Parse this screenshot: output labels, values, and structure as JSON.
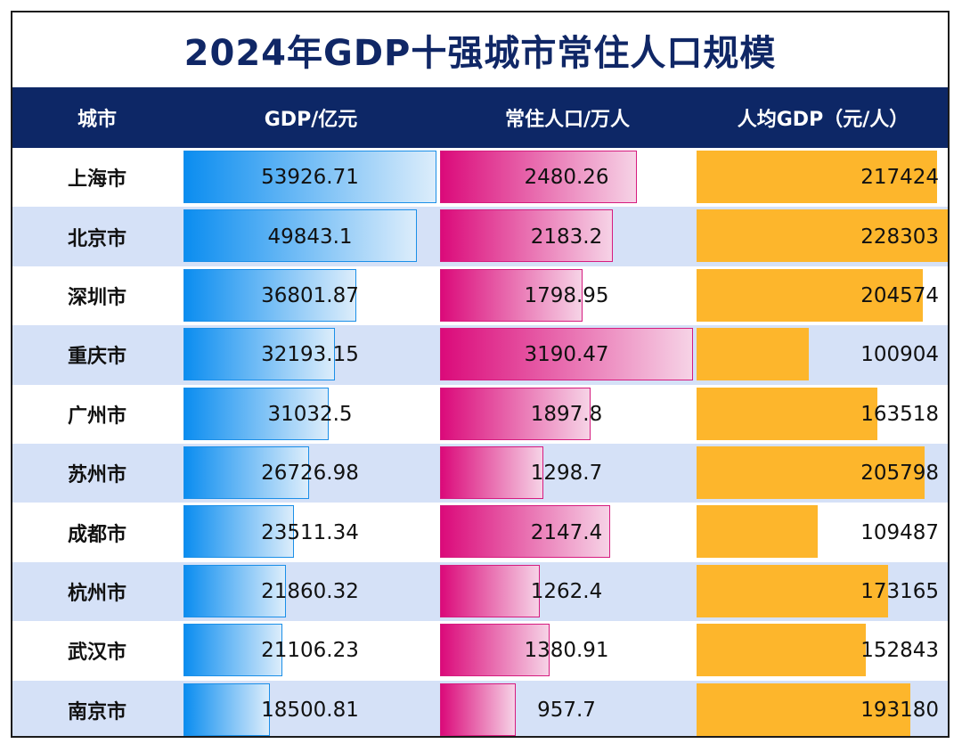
{
  "title": "2024年GDP十强城市常住人口规模",
  "headers": {
    "city": "城市",
    "gdp": "GDP/亿元",
    "population": "常住人口/万人",
    "per_capita": "人均GDP（元/人）"
  },
  "colors": {
    "header_bg": "#0d2766",
    "title_text": "#102766",
    "row_alt": "#d5e1f7",
    "gdp_bar": "#0b8df0",
    "population_bar": "#db0a7a",
    "per_capita_bar": "#fdb62c"
  },
  "chart_data": {
    "type": "table",
    "title": "2024年GDP十强城市常住人口规模",
    "columns": [
      "城市",
      "GDP/亿元",
      "常住人口/万人",
      "人均GDP（元/人）"
    ],
    "series": [
      {
        "name": "GDP/亿元",
        "max": 53926.71
      },
      {
        "name": "常住人口/万人",
        "max": 3190.47
      },
      {
        "name": "人均GDP（元/人）",
        "max": 228303
      }
    ],
    "rows": [
      {
        "city": "上海市",
        "gdp": "53926.71",
        "population": "2480.26",
        "per_capita": "217424"
      },
      {
        "city": "北京市",
        "gdp": "49843.1",
        "population": "2183.2",
        "per_capita": "228303"
      },
      {
        "city": "深圳市",
        "gdp": "36801.87",
        "population": "1798.95",
        "per_capita": "204574"
      },
      {
        "city": "重庆市",
        "gdp": "32193.15",
        "population": "3190.47",
        "per_capita": "100904"
      },
      {
        "city": "广州市",
        "gdp": "31032.5",
        "population": "1897.8",
        "per_capita": "163518"
      },
      {
        "city": "苏州市",
        "gdp": "26726.98",
        "population": "1298.7",
        "per_capita": "205798"
      },
      {
        "city": "成都市",
        "gdp": "23511.34",
        "population": "2147.4",
        "per_capita": "109487"
      },
      {
        "city": "杭州市",
        "gdp": "21860.32",
        "population": "1262.4",
        "per_capita": "173165"
      },
      {
        "city": "武汉市",
        "gdp": "21106.23",
        "population": "1380.91",
        "per_capita": "152843"
      },
      {
        "city": "南京市",
        "gdp": "18500.81",
        "population": "957.7",
        "per_capita": "193180"
      }
    ]
  }
}
